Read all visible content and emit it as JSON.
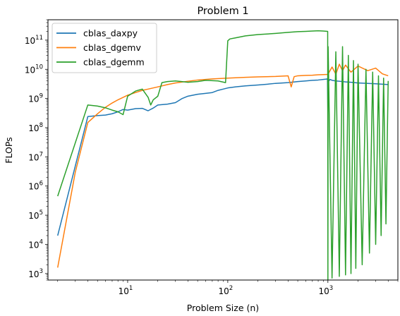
{
  "chart_data": {
    "type": "line",
    "title": "Problem 1",
    "xlabel": "Problem Size (n)",
    "ylabel": "FLOPs",
    "xscale": "log",
    "yscale": "log",
    "xlim": [
      1.6,
      5000
    ],
    "ylim": [
      600,
      500000000000
    ],
    "xticks": [
      {
        "base": "10",
        "exp": "1",
        "value": 10
      },
      {
        "base": "10",
        "exp": "2",
        "value": 100
      },
      {
        "base": "10",
        "exp": "3",
        "value": 1000
      }
    ],
    "yticks": [
      {
        "base": "10",
        "exp": "3",
        "value": 1000
      },
      {
        "base": "10",
        "exp": "4",
        "value": 10000
      },
      {
        "base": "10",
        "exp": "5",
        "value": 100000
      },
      {
        "base": "10",
        "exp": "6",
        "value": 1000000
      },
      {
        "base": "10",
        "exp": "7",
        "value": 10000000
      },
      {
        "base": "10",
        "exp": "8",
        "value": 100000000
      },
      {
        "base": "10",
        "exp": "9",
        "value": 1000000000
      },
      {
        "base": "10",
        "exp": "10",
        "value": 10000000000
      },
      {
        "base": "10",
        "exp": "11",
        "value": 100000000000
      }
    ],
    "legend_position": "top-left",
    "grid": false,
    "series": [
      {
        "name": "cblas_daxpy",
        "color": "#1f77b4",
        "x": [
          2,
          4,
          5,
          6,
          7,
          8,
          9,
          10,
          12,
          14,
          16,
          18,
          20,
          25,
          30,
          35,
          40,
          50,
          60,
          70,
          80,
          90,
          100,
          120,
          150,
          200,
          250,
          300,
          400,
          500,
          600,
          700,
          800,
          900,
          950,
          990,
          1000,
          1010,
          1050,
          1100,
          1200,
          1300,
          1500,
          1700,
          2000,
          2500,
          3000,
          3500,
          4000
        ],
        "y": [
          20000,
          240000000,
          260000000,
          270000000,
          300000000,
          350000000,
          420000000,
          400000000,
          450000000,
          460000000,
          380000000,
          470000000,
          600000000,
          640000000,
          720000000,
          1000000000,
          1200000000,
          1400000000,
          1500000000,
          1600000000,
          1900000000,
          2100000000,
          2300000000,
          2500000000,
          2700000000,
          2900000000,
          3100000000,
          3300000000,
          3500000000,
          3800000000,
          4000000000,
          4200000000,
          4300000000,
          4500000000,
          4600000000,
          4700000000,
          350000000,
          3800000000,
          4500000000,
          4200000000,
          4000000000,
          3900000000,
          3700000000,
          3600000000,
          3400000000,
          3300000000,
          3200000000,
          3100000000,
          3000000000
        ]
      },
      {
        "name": "cblas_dgemv",
        "color": "#ff7f0e",
        "x": [
          2,
          3,
          4,
          5,
          6,
          7,
          8,
          10,
          12,
          14,
          16,
          20,
          25,
          30,
          40,
          50,
          70,
          100,
          150,
          200,
          300,
          400,
          430,
          460,
          500,
          600,
          700,
          800,
          900,
          1000,
          1100,
          1200,
          1300,
          1400,
          1500,
          1700,
          2000,
          2500,
          3000,
          3500,
          4000
        ],
        "y": [
          1600,
          3000000,
          150000000,
          300000000,
          500000000,
          700000000,
          900000000,
          1300000000,
          1600000000,
          1900000000,
          2100000000,
          2500000000,
          3000000000,
          3400000000,
          3900000000,
          4300000000,
          4700000000,
          5000000000,
          5300000000,
          5500000000,
          5700000000,
          6000000000,
          2500000000,
          5600000000,
          6000000000,
          6200000000,
          6300000000,
          6500000000,
          6600000000,
          6700000000,
          12000000000,
          6800000000,
          15000000000,
          9000000000,
          14000000000,
          8000000000,
          13000000000,
          9000000000,
          11000000000,
          7000000000,
          6000000000
        ]
      },
      {
        "name": "cblas_dgemm",
        "color": "#2ca02c",
        "x": [
          2,
          4,
          5,
          6,
          7,
          8,
          9,
          10,
          12,
          14,
          16,
          17,
          18,
          20,
          22,
          25,
          30,
          40,
          50,
          60,
          80,
          95,
          100,
          105,
          120,
          150,
          200,
          300,
          400,
          500,
          600,
          700,
          800,
          900,
          995,
          1000,
          1005,
          1100,
          1200,
          1300,
          1400,
          1500,
          1600,
          1700,
          1800,
          1900,
          2000,
          2200,
          2400,
          2600,
          2800,
          3000,
          3200,
          3400,
          3600,
          3800,
          4000
        ],
        "y": [
          450000,
          600000000,
          550000000,
          480000000,
          400000000,
          350000000,
          280000000,
          1200000000,
          1800000000,
          2100000000,
          1100000000,
          600000000,
          900000000,
          1200000000,
          3500000000,
          3800000000,
          4000000000,
          3600000000,
          3800000000,
          4200000000,
          4000000000,
          3500000000,
          95000000000,
          110000000000,
          120000000000,
          140000000000,
          155000000000,
          170000000000,
          185000000000,
          195000000000,
          200000000000,
          205000000000,
          210000000000,
          205000000000,
          200000000000,
          600,
          60000000000,
          700,
          40000000000,
          800,
          60000000000,
          900,
          30000000000,
          1000,
          20000000000,
          1500,
          15000000000,
          2000,
          10000000000,
          5000,
          8000000000,
          10000,
          6000000000,
          20000,
          5000000000,
          50000,
          4000000000
        ]
      }
    ]
  }
}
